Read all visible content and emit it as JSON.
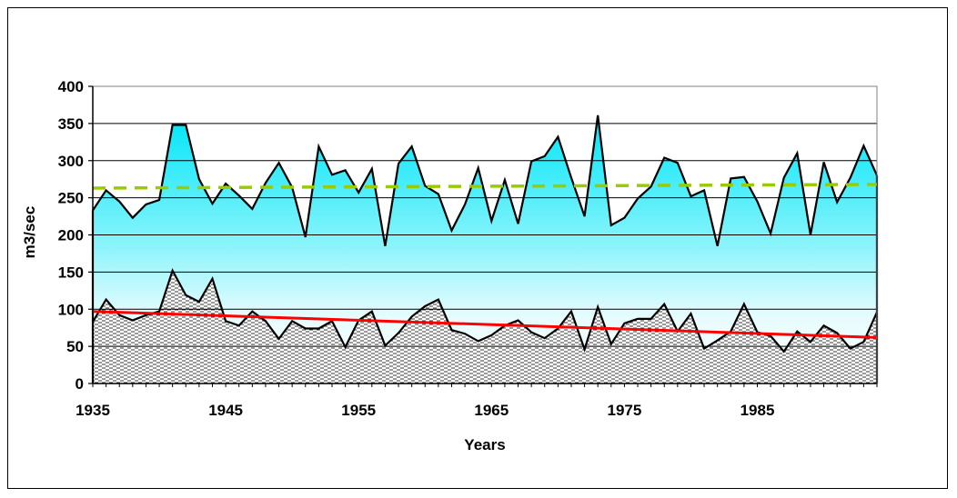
{
  "chart_data": {
    "type": "area",
    "xlabel": "Years",
    "ylabel": "m3/sec",
    "ylim": [
      0,
      400
    ],
    "xlim": [
      1935,
      1994
    ],
    "yticks": [
      0,
      50,
      100,
      150,
      200,
      250,
      300,
      350,
      400
    ],
    "xticks": [
      1935,
      1945,
      1955,
      1965,
      1975,
      1985
    ],
    "grid": "horizontal",
    "x": [
      1935,
      1936,
      1937,
      1938,
      1939,
      1940,
      1941,
      1942,
      1943,
      1944,
      1945,
      1946,
      1947,
      1948,
      1949,
      1950,
      1951,
      1952,
      1953,
      1954,
      1955,
      1956,
      1957,
      1958,
      1959,
      1960,
      1961,
      1962,
      1963,
      1964,
      1965,
      1966,
      1967,
      1968,
      1969,
      1970,
      1971,
      1972,
      1973,
      1974,
      1975,
      1976,
      1977,
      1978,
      1979,
      1980,
      1981,
      1982,
      1983,
      1984,
      1985,
      1986,
      1987,
      1988,
      1989,
      1990,
      1991,
      1992,
      1993,
      1994
    ],
    "series": [
      {
        "values": [
          233,
          260,
          245,
          223,
          241,
          247,
          348,
          348,
          275,
          242,
          269,
          253,
          235,
          270,
          297,
          264,
          197,
          319,
          281,
          287,
          257,
          289,
          185,
          296,
          319,
          266,
          255,
          206,
          241,
          290,
          219,
          274,
          215,
          299,
          306,
          332,
          277,
          225,
          361,
          213,
          223,
          249,
          265,
          304,
          297,
          252,
          260,
          185,
          276,
          278,
          245,
          202,
          277,
          310,
          200,
          298,
          244,
          277,
          320,
          280
        ],
        "color": "#00E5F8"
      },
      {
        "values": [
          83,
          113,
          92,
          85,
          92,
          97,
          152,
          119,
          110,
          141,
          84,
          78,
          97,
          84,
          60,
          84,
          74,
          74,
          84,
          49,
          85,
          97,
          51,
          68,
          90,
          104,
          113,
          72,
          67,
          57,
          65,
          78,
          85,
          69,
          61,
          74,
          97,
          46,
          103,
          53,
          81,
          87,
          87,
          107,
          70,
          94,
          47,
          58,
          70,
          107,
          69,
          64,
          43,
          70,
          56,
          78,
          68,
          47,
          56,
          96
        ],
        "pattern": "horizontal-dash-hatch"
      }
    ],
    "trendlines": [
      {
        "series_index": 0,
        "start": [
          1935,
          263
        ],
        "end": [
          1994,
          268
        ],
        "color": "#99CC00",
        "style": "dashed"
      },
      {
        "series_index": 1,
        "start": [
          1935,
          97
        ],
        "end": [
          1994,
          62
        ],
        "color": "#FF0000",
        "style": "solid"
      }
    ]
  }
}
